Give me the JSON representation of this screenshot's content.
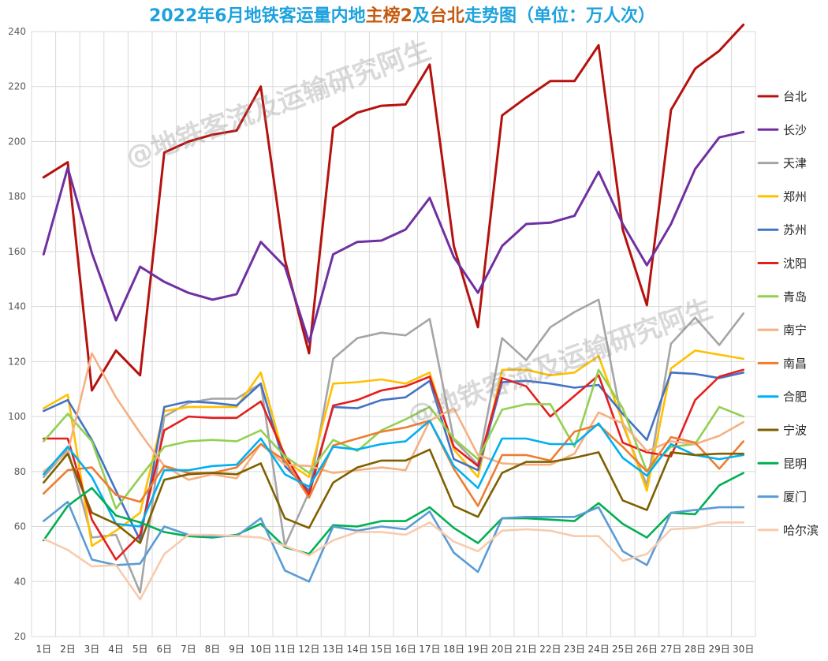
{
  "colors": {
    "title": "#1ea2de",
    "title_highlight": "#c55a11",
    "grid": "#d9d9d9",
    "tick_text": "#595959",
    "legend_text": "#262626"
  },
  "watermark": {
    "text": "@地铁客流及运输研究阿生"
  },
  "chart_data": {
    "type": "line",
    "title": "2022年6月地铁客运量内地主榜2及台北走势图（单位：万人次）",
    "title_highlights": [
      "主榜2",
      "台北"
    ],
    "xlabel": "",
    "ylabel": "",
    "categories": [
      "1日",
      "2日",
      "3日",
      "4日",
      "5日",
      "6日",
      "7日",
      "8日",
      "9日",
      "10日",
      "11日",
      "12日",
      "13日",
      "14日",
      "15日",
      "16日",
      "17日",
      "18日",
      "19日",
      "20日",
      "21日",
      "22日",
      "23日",
      "24日",
      "25日",
      "26日",
      "27日",
      "28日",
      "29日",
      "30日"
    ],
    "ylim": [
      20,
      240
    ],
    "yticks": [
      20,
      40,
      60,
      80,
      100,
      120,
      140,
      160,
      180,
      200,
      220,
      240
    ],
    "grid": true,
    "legend_position": "right",
    "series": [
      {
        "name": "台北",
        "color": "#b5120e",
        "values": [
          187,
          192.5,
          109.5,
          124,
          115,
          196,
          200,
          202.5,
          204,
          220,
          157,
          123,
          205,
          210.5,
          213,
          213.5,
          228,
          162,
          132.5,
          209.5,
          216,
          222,
          222,
          235,
          168,
          140.5,
          211.5,
          226.5,
          233,
          242.5
        ]
      },
      {
        "name": "长沙",
        "color": "#7030a0",
        "values": [
          159,
          190.5,
          159.5,
          135,
          154.5,
          149,
          145,
          142.5,
          144.5,
          163.5,
          154.5,
          127,
          159,
          163.5,
          164,
          168,
          179.5,
          158,
          145,
          162,
          170,
          170.5,
          173,
          189,
          170,
          155,
          170,
          190,
          201.5,
          203.5
        ]
      },
      {
        "name": "天津",
        "color": "#a5a5a5",
        "values": [
          78,
          88,
          56,
          57,
          36,
          100,
          105,
          106.5,
          106.5,
          112,
          53,
          72.5,
          121,
          128.5,
          130.5,
          129.5,
          135.5,
          91.5,
          82.5,
          128.5,
          120.5,
          132.5,
          138,
          142.5,
          97,
          75,
          126.5,
          136,
          126,
          137.5
        ]
      },
      {
        "name": "郑州",
        "color": "#ffc000",
        "values": [
          103,
          108,
          53,
          58.5,
          65,
          102,
          103.5,
          103.5,
          103.5,
          116,
          84,
          78,
          112,
          112.5,
          113.5,
          112,
          116,
          88,
          78,
          117,
          117,
          115,
          116,
          122,
          98,
          73,
          117.5,
          124,
          122.5,
          121
        ]
      },
      {
        "name": "苏州",
        "color": "#4472c4",
        "values": [
          102,
          106,
          91.5,
          73,
          55,
          103.5,
          105.5,
          105,
          104,
          112,
          82,
          73,
          103.5,
          103,
          106,
          107,
          113,
          84.5,
          80.5,
          112.5,
          113,
          112,
          110.5,
          111.5,
          101,
          91.5,
          116,
          115.5,
          114,
          116
        ]
      },
      {
        "name": "沈阳",
        "color": "#e41e1e",
        "values": [
          92,
          92,
          62.5,
          48,
          57,
          95,
          100,
          99.5,
          99.5,
          105.5,
          86,
          71.5,
          104,
          106,
          109.5,
          111,
          114.5,
          89,
          82,
          114,
          111,
          100,
          107.5,
          115,
          90.5,
          87,
          85.5,
          106,
          114.5,
          117
        ]
      },
      {
        "name": "青岛",
        "color": "#92d050",
        "values": [
          91,
          101,
          91,
          66.5,
          78,
          89,
          91,
          91.5,
          91,
          95,
          85.5,
          79.5,
          91.5,
          87.5,
          95,
          99,
          103.5,
          92,
          84.5,
          102.5,
          104.5,
          104.5,
          89,
          117,
          103,
          80,
          89,
          90,
          103.5,
          100
        ]
      },
      {
        "name": "南宁",
        "color": "#f4b183",
        "values": [
          80,
          87,
          123,
          107,
          94,
          82,
          77,
          79,
          77.5,
          90,
          82.5,
          82,
          79.5,
          80.5,
          81.5,
          80.5,
          98.5,
          103,
          86,
          83,
          82.5,
          82.5,
          86.5,
          101.5,
          97.5,
          87.5,
          91,
          90,
          93,
          98
        ]
      },
      {
        "name": "南昌",
        "color": "#ed7d31",
        "values": [
          72,
          80.5,
          81.5,
          71.5,
          69,
          82,
          79.5,
          79.5,
          81.5,
          90,
          84,
          70.5,
          89.5,
          92,
          94.5,
          96,
          98.5,
          81,
          67.5,
          86,
          86,
          84,
          94.5,
          97,
          89,
          80,
          92.5,
          90.5,
          81,
          91
        ]
      },
      {
        "name": "合肥",
        "color": "#00b0f0",
        "values": [
          79,
          89,
          78,
          61,
          60,
          80.5,
          80.5,
          82,
          82.5,
          92,
          79,
          74.5,
          89,
          88,
          90,
          91,
          98.5,
          82,
          74,
          92,
          92,
          90,
          90,
          97.5,
          85,
          78.5,
          90,
          86,
          84.5,
          86
        ]
      },
      {
        "name": "宁波",
        "color": "#7f6000",
        "values": [
          76,
          86.5,
          65,
          61,
          54,
          77,
          79,
          79.5,
          79,
          83,
          63,
          59.5,
          76,
          81.5,
          84,
          84,
          88,
          67.5,
          63.5,
          79.5,
          83.5,
          83.5,
          85,
          87,
          69.5,
          66,
          87,
          86,
          86.5,
          86.5
        ]
      },
      {
        "name": "昆明",
        "color": "#00b050",
        "values": [
          55,
          67.5,
          74,
          64,
          61.5,
          58,
          56.5,
          56,
          57,
          61,
          52.5,
          50,
          60.5,
          60,
          62,
          62,
          67,
          59.5,
          54,
          63,
          63,
          62.5,
          62,
          68.5,
          61,
          56,
          65,
          64.5,
          75,
          79.5
        ]
      },
      {
        "name": "厦门",
        "color": "#5b9bd5",
        "values": [
          62,
          69,
          48,
          46,
          46.5,
          60,
          57,
          56.5,
          56.5,
          63,
          44,
          40,
          60,
          58.5,
          60,
          59,
          65.5,
          50.5,
          43.5,
          63,
          63.5,
          63.5,
          63.5,
          67,
          51,
          46,
          65,
          66,
          67,
          67
        ]
      },
      {
        "name": "哈尔滨",
        "color": "#f8cbad",
        "values": [
          55.5,
          51.5,
          45.5,
          46,
          33.5,
          50,
          57,
          57,
          56.5,
          56,
          53,
          49.5,
          55,
          58,
          58,
          57,
          61.5,
          54.5,
          51,
          58.5,
          59,
          58.5,
          56.5,
          56.5,
          47.5,
          50,
          59,
          59.5,
          61.5,
          61.5
        ]
      }
    ]
  }
}
